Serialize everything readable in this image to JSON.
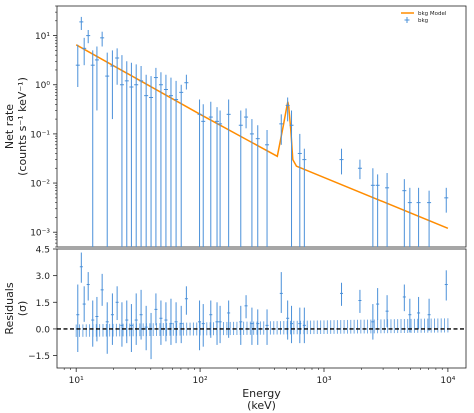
{
  "chart_data": {
    "type": "scatter",
    "x_scale": "log",
    "x_label_line1": "Energy",
    "x_label_line2": "(keV)",
    "x_tick_labels": [
      "10¹",
      "10²",
      "10³",
      "10⁴"
    ],
    "x_ticks": [
      10,
      100,
      1000,
      10000
    ],
    "xlim": [
      7,
      14000
    ],
    "legend": {
      "position": "top-right",
      "entries": [
        {
          "label": "bkg Model",
          "kind": "line",
          "color": "#ff8c00"
        },
        {
          "label": "bkg",
          "kind": "marker",
          "color": "#4a90d9"
        }
      ]
    },
    "colors": {
      "model": "#ff8c00",
      "data": "#4a90d9",
      "zero_line": "#000000"
    },
    "top_panel": {
      "y_scale": "log",
      "ylabel_line1": "Net rate",
      "ylabel_line2": "(counts s⁻¹ keV⁻¹)",
      "ylim": [
        0.0005,
        40
      ],
      "y_ticks": [
        0.001,
        0.01,
        0.1,
        1,
        10
      ],
      "y_tick_labels": [
        "10⁻³",
        "10⁻²",
        "10⁻¹",
        "10⁰",
        "10¹"
      ],
      "model": {
        "name": "bkg Model",
        "x": [
          10,
          100,
          420,
          470,
          500,
          510,
          520,
          540,
          560,
          600,
          10000
        ],
        "y": [
          6.5,
          0.25,
          0.035,
          0.15,
          0.35,
          0.45,
          0.35,
          0.12,
          0.03,
          0.022,
          0.0012
        ]
      },
      "data": {
        "name": "bkg",
        "points": [
          {
            "x": 10.3,
            "y": 2.5,
            "lo": 0.9,
            "hi": 6.5
          },
          {
            "x": 11.0,
            "y": 19,
            "lo": 13,
            "hi": 24
          },
          {
            "x": 11.6,
            "y": 5.5,
            "lo": 2.5,
            "hi": 9
          },
          {
            "x": 12.5,
            "y": 10,
            "lo": 7,
            "hi": 13
          },
          {
            "x": 13.6,
            "y": 2.5,
            "lo": 0.0005,
            "hi": 5
          },
          {
            "x": 14.7,
            "y": 3.2,
            "lo": 0.3,
            "hi": 6
          },
          {
            "x": 16.2,
            "y": 9,
            "lo": 6,
            "hi": 12
          },
          {
            "x": 17.8,
            "y": 1.5,
            "lo": 0.0005,
            "hi": 4.5
          },
          {
            "x": 19.6,
            "y": 2.4,
            "lo": 0.2,
            "hi": 5
          },
          {
            "x": 21.4,
            "y": 3.5,
            "lo": 1.0,
            "hi": 5.5
          },
          {
            "x": 23.4,
            "y": 1.0,
            "lo": 0.0005,
            "hi": 4
          },
          {
            "x": 25.6,
            "y": 1.2,
            "lo": 0.0005,
            "hi": 3
          },
          {
            "x": 27.9,
            "y": 0.9,
            "lo": 0.0005,
            "hi": 2.8
          },
          {
            "x": 30.5,
            "y": 1.0,
            "lo": 0.0005,
            "hi": 2.6
          },
          {
            "x": 33.4,
            "y": 1.2,
            "lo": 0.0005,
            "hi": 2.4
          },
          {
            "x": 36.7,
            "y": 0.6,
            "lo": 0.0005,
            "hi": 1.6
          },
          {
            "x": 40.2,
            "y": 0.55,
            "lo": 0.0005,
            "hi": 1.5
          },
          {
            "x": 44.0,
            "y": 1.4,
            "lo": 0.0005,
            "hi": 2.2
          },
          {
            "x": 48.3,
            "y": 1.0,
            "lo": 0.0005,
            "hi": 1.8
          },
          {
            "x": 53.0,
            "y": 0.8,
            "lo": 0.0005,
            "hi": 1.6
          },
          {
            "x": 58.2,
            "y": 0.6,
            "lo": 0.0005,
            "hi": 1.4
          },
          {
            "x": 64.0,
            "y": 0.5,
            "lo": 0.0005,
            "hi": 1.2
          },
          {
            "x": 70.4,
            "y": 0.7,
            "lo": 0.0005,
            "hi": 1.0
          },
          {
            "x": 77.5,
            "y": 1.1,
            "lo": 0.8,
            "hi": 1.6
          },
          {
            "x": 99,
            "y": 0.25,
            "lo": 0.0005,
            "hi": 0.5
          },
          {
            "x": 106,
            "y": 0.18,
            "lo": 0.0005,
            "hi": 0.4
          },
          {
            "x": 122,
            "y": 0.22,
            "lo": 0.0005,
            "hi": 0.45
          },
          {
            "x": 137,
            "y": 0.18,
            "lo": 0.0005,
            "hi": 0.35
          },
          {
            "x": 145,
            "y": 0.16,
            "lo": 0.0005,
            "hi": 0.3
          },
          {
            "x": 170,
            "y": 0.25,
            "lo": 0.0005,
            "hi": 0.5
          },
          {
            "x": 213,
            "y": 0.15,
            "lo": 0.0005,
            "hi": 0.3
          },
          {
            "x": 235,
            "y": 0.22,
            "lo": 0.13,
            "hi": 0.33
          },
          {
            "x": 262,
            "y": 0.1,
            "lo": 0.0005,
            "hi": 0.2
          },
          {
            "x": 292,
            "y": 0.08,
            "lo": 0.0005,
            "hi": 0.15
          },
          {
            "x": 347,
            "y": 0.06,
            "lo": 0.0005,
            "hi": 0.12
          },
          {
            "x": 452,
            "y": 0.16,
            "lo": 0.06,
            "hi": 0.25
          },
          {
            "x": 509,
            "y": 0.38,
            "lo": 0.18,
            "hi": 0.55
          },
          {
            "x": 547,
            "y": 0.15,
            "lo": 0.0005,
            "hi": 0.3
          },
          {
            "x": 638,
            "y": 0.04,
            "lo": 0.0005,
            "hi": 0.1
          },
          {
            "x": 694,
            "y": 0.03,
            "lo": 0.0005,
            "hi": 0.05
          },
          {
            "x": 1385,
            "y": 0.03,
            "lo": 0.015,
            "hi": 0.05
          },
          {
            "x": 1950,
            "y": 0.02,
            "lo": 0.012,
            "hi": 0.03
          },
          {
            "x": 2480,
            "y": 0.009,
            "lo": 0.0005,
            "hi": 0.02
          },
          {
            "x": 2710,
            "y": 0.009,
            "lo": 0.0005,
            "hi": 0.015
          },
          {
            "x": 3230,
            "y": 0.008,
            "lo": 0.0005,
            "hi": 0.016
          },
          {
            "x": 4450,
            "y": 0.007,
            "lo": 0.0005,
            "hi": 0.012
          },
          {
            "x": 4930,
            "y": 0.004,
            "lo": 0.0005,
            "hi": 0.008
          },
          {
            "x": 5800,
            "y": 0.004,
            "lo": 0.0005,
            "hi": 0.008
          },
          {
            "x": 7050,
            "y": 0.004,
            "lo": 0.0005,
            "hi": 0.007
          },
          {
            "x": 9700,
            "y": 0.005,
            "lo": 0.0025,
            "hi": 0.008
          }
        ]
      }
    },
    "bottom_panel": {
      "ylabel_line1": "Residuals",
      "ylabel_line2": "(σ)",
      "ylim": [
        -2.2,
        4.5
      ],
      "y_ticks": [
        -1.5,
        0.0,
        1.5,
        3.0,
        4.5
      ],
      "y_tick_labels": [
        "−1.5",
        "0.0",
        "1.5",
        "3.0",
        "4.5"
      ],
      "zero_line": 0,
      "residuals": [
        {
          "x": 10.3,
          "y": 0.8,
          "lo": -1.3,
          "hi": 2.5
        },
        {
          "x": 11.0,
          "y": 3.5,
          "lo": 2.6,
          "hi": 4.3
        },
        {
          "x": 11.6,
          "y": 1.4,
          "lo": 0.4,
          "hi": 2.4
        },
        {
          "x": 12.5,
          "y": 2.5,
          "lo": 1.6,
          "hi": 3.2
        },
        {
          "x": 13.6,
          "y": 0.5,
          "lo": -1.0,
          "hi": 1.6
        },
        {
          "x": 14.7,
          "y": 0.7,
          "lo": -0.7,
          "hi": 1.8
        },
        {
          "x": 16.2,
          "y": 2.2,
          "lo": 1.3,
          "hi": 3.1
        },
        {
          "x": 17.8,
          "y": 0.4,
          "lo": -1.4,
          "hi": 1.5
        },
        {
          "x": 19.6,
          "y": 0.8,
          "lo": -0.9,
          "hi": 2.0
        },
        {
          "x": 21.4,
          "y": 1.5,
          "lo": 0.5,
          "hi": 2.4
        },
        {
          "x": 23.4,
          "y": 0.2,
          "lo": -1.0,
          "hi": 1.5
        },
        {
          "x": 25.6,
          "y": 0.5,
          "lo": -0.8,
          "hi": 1.6
        },
        {
          "x": 27.9,
          "y": 0.2,
          "lo": -1.3,
          "hi": 1.4
        },
        {
          "x": 30.5,
          "y": 0.5,
          "lo": -0.9,
          "hi": 2.0
        },
        {
          "x": 33.4,
          "y": 0.8,
          "lo": -0.6,
          "hi": 2.2
        },
        {
          "x": 36.7,
          "y": 0.1,
          "lo": -1.2,
          "hi": 1.3
        },
        {
          "x": 40.2,
          "y": 0.0,
          "lo": -1.7,
          "hi": 0.9
        },
        {
          "x": 44.0,
          "y": 1.1,
          "lo": 0.2,
          "hi": 2.0
        },
        {
          "x": 48.3,
          "y": 0.6,
          "lo": -0.9,
          "hi": 1.6
        },
        {
          "x": 53.0,
          "y": 0.5,
          "lo": -0.7,
          "hi": 1.5
        },
        {
          "x": 58.2,
          "y": 0.3,
          "lo": -0.9,
          "hi": 1.7
        },
        {
          "x": 64.0,
          "y": 0.4,
          "lo": -0.8,
          "hi": 1.5
        },
        {
          "x": 70.4,
          "y": 0.3,
          "lo": -0.8,
          "hi": 1.3
        },
        {
          "x": 77.5,
          "y": 1.7,
          "lo": 0.8,
          "hi": 2.4
        },
        {
          "x": 99,
          "y": 0.4,
          "lo": -1.2,
          "hi": 1.6
        },
        {
          "x": 106,
          "y": 0.3,
          "lo": -1.0,
          "hi": 1.4
        },
        {
          "x": 122,
          "y": 0.8,
          "lo": -0.5,
          "hi": 1.6
        },
        {
          "x": 137,
          "y": 0.4,
          "lo": -0.9,
          "hi": 1.5
        },
        {
          "x": 145,
          "y": 0.4,
          "lo": -0.8,
          "hi": 1.3
        },
        {
          "x": 170,
          "y": 0.9,
          "lo": -0.5,
          "hi": 1.6
        },
        {
          "x": 213,
          "y": 0.4,
          "lo": -0.9,
          "hi": 1.3
        },
        {
          "x": 235,
          "y": 1.3,
          "lo": 0.6,
          "hi": 1.9
        },
        {
          "x": 262,
          "y": 0.3,
          "lo": -0.9,
          "hi": 1.2
        },
        {
          "x": 292,
          "y": 0.3,
          "lo": -0.9,
          "hi": 1.1
        },
        {
          "x": 347,
          "y": 0.2,
          "lo": -0.9,
          "hi": 1.1
        },
        {
          "x": 452,
          "y": 2.0,
          "lo": 0.9,
          "hi": 3.2
        },
        {
          "x": 509,
          "y": 0.6,
          "lo": -0.6,
          "hi": 1.6
        },
        {
          "x": 547,
          "y": 0.3,
          "lo": -0.8,
          "hi": 1.3
        },
        {
          "x": 638,
          "y": 0.3,
          "lo": -0.8,
          "hi": 1.2
        },
        {
          "x": 694,
          "y": 0.2,
          "lo": -0.8,
          "hi": 1.2
        },
        {
          "x": 1385,
          "y": 2.0,
          "lo": 1.3,
          "hi": 2.6
        },
        {
          "x": 1950,
          "y": 1.6,
          "lo": 0.9,
          "hi": 2.2
        },
        {
          "x": 2480,
          "y": 0.4,
          "lo": -0.6,
          "hi": 1.4
        },
        {
          "x": 2710,
          "y": 1.4,
          "lo": 0.5,
          "hi": 2.3
        },
        {
          "x": 3230,
          "y": 1.0,
          "lo": 0.1,
          "hi": 1.9
        },
        {
          "x": 4450,
          "y": 1.8,
          "lo": 1.0,
          "hi": 2.5
        },
        {
          "x": 4930,
          "y": 0.8,
          "lo": -0.2,
          "hi": 1.7
        },
        {
          "x": 5800,
          "y": 0.9,
          "lo": 0.0,
          "hi": 1.8
        },
        {
          "x": 7050,
          "y": 0.8,
          "lo": -0.1,
          "hi": 1.7
        },
        {
          "x": 9700,
          "y": 2.5,
          "lo": 1.6,
          "hi": 3.3
        }
      ],
      "model_level_band": {
        "x": [
          10,
          10000
        ],
        "lo": [
          -0.45,
          -0.2
        ],
        "hi": [
          0.25,
          0.6
        ],
        "count": 112
      }
    }
  }
}
